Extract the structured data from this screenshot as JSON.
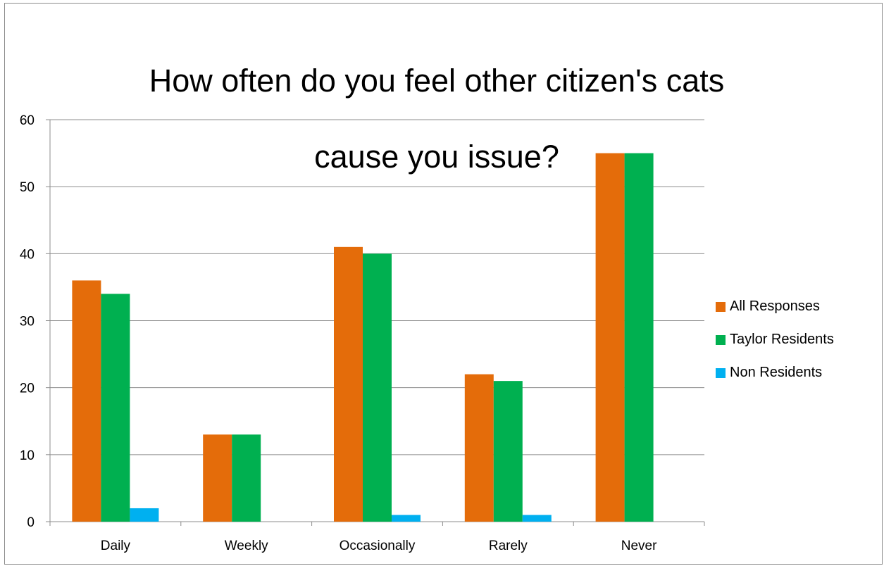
{
  "chart_data": {
    "type": "bar",
    "title": "How often do you feel other citizen's cats cause you issue?",
    "title_lines": [
      "How often do you feel other citizen's cats",
      "cause you issue?"
    ],
    "categories": [
      "Daily",
      "Weekly",
      "Occasionally",
      "Rarely",
      "Never"
    ],
    "series": [
      {
        "name": "All Responses",
        "values": [
          36,
          13,
          41,
          22,
          55
        ],
        "color": "#E46C0A"
      },
      {
        "name": "Taylor Residents",
        "values": [
          34,
          13,
          40,
          21,
          55
        ],
        "color": "#00B050"
      },
      {
        "name": "Non Residents",
        "values": [
          2,
          0,
          1,
          1,
          0
        ],
        "color": "#00B0F0"
      }
    ],
    "ylim": [
      0,
      60
    ],
    "yticks": [
      0,
      10,
      20,
      30,
      40,
      50,
      60
    ],
    "xlabel": "",
    "ylabel": "",
    "grid": true,
    "gridline_color": "#8c8c8c",
    "legend_position": "right"
  }
}
